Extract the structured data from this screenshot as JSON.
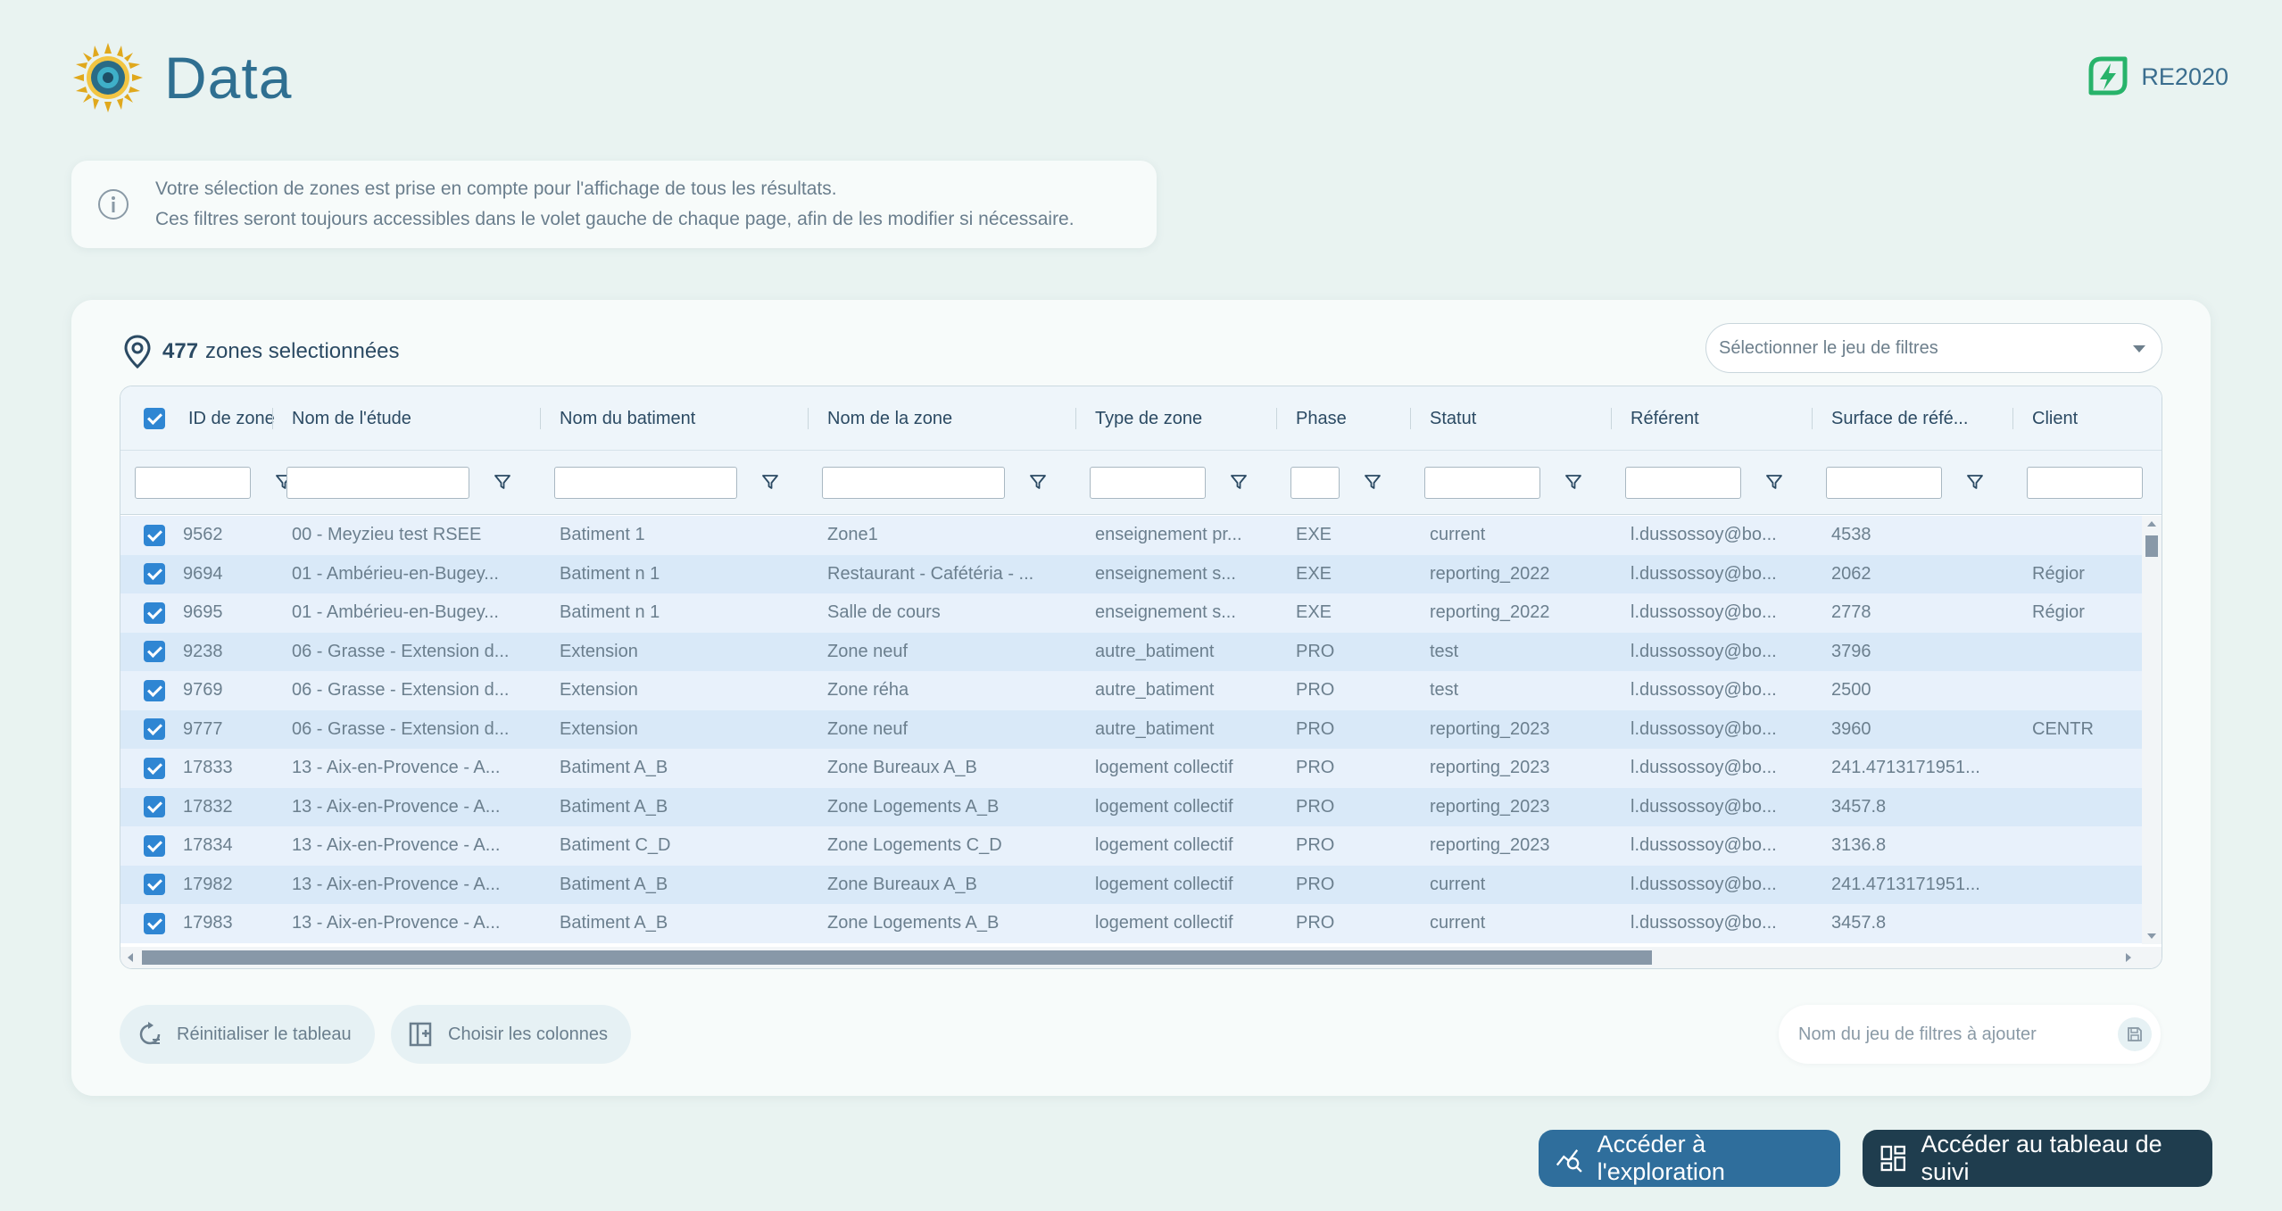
{
  "header": {
    "title": "Data",
    "badge": "RE2020"
  },
  "info": {
    "line1": "Votre sélection de zones est prise en compte pour l'affichage de tous les résultats.",
    "line2": "Ces filtres seront toujours accessibles dans le volet gauche de chaque page, afin de les modifier si nécessaire."
  },
  "card": {
    "count": "477",
    "count_label": "zones selectionnées",
    "filter_select_placeholder": "Sélectionner le jeu de filtres"
  },
  "table": {
    "columns": [
      "ID de zone",
      "Nom de l'étude",
      "Nom du batiment",
      "Nom de la zone",
      "Type de zone",
      "Phase",
      "Statut",
      "Référent",
      "Surface de réfé...",
      "Client"
    ],
    "rows": [
      [
        "9562",
        "00 - Meyzieu test RSEE",
        "Batiment 1",
        "Zone1",
        "enseignement pr...",
        "EXE",
        "current",
        "l.dussossoy@bo...",
        "4538",
        ""
      ],
      [
        "9694",
        "01 - Ambérieu-en-Bugey...",
        "Batiment n 1",
        "Restaurant - Cafétéria - ...",
        "enseignement s...",
        "EXE",
        "reporting_2022",
        "l.dussossoy@bo...",
        "2062",
        "Régior"
      ],
      [
        "9695",
        "01 - Ambérieu-en-Bugey...",
        "Batiment n 1",
        "Salle de cours",
        "enseignement s...",
        "EXE",
        "reporting_2022",
        "l.dussossoy@bo...",
        "2778",
        "Régior"
      ],
      [
        "9238",
        "06 - Grasse - Extension d...",
        "Extension",
        "Zone neuf",
        "autre_batiment",
        "PRO",
        "test",
        "l.dussossoy@bo...",
        "3796",
        ""
      ],
      [
        "9769",
        "06 - Grasse - Extension d...",
        "Extension",
        "Zone réha",
        "autre_batiment",
        "PRO",
        "test",
        "l.dussossoy@bo...",
        "2500",
        ""
      ],
      [
        "9777",
        "06 - Grasse - Extension d...",
        "Extension",
        "Zone neuf",
        "autre_batiment",
        "PRO",
        "reporting_2023",
        "l.dussossoy@bo...",
        "3960",
        "CENTR"
      ],
      [
        "17833",
        "13 - Aix-en-Provence - A...",
        "Batiment A_B",
        "Zone Bureaux A_B",
        "logement collectif",
        "PRO",
        "reporting_2023",
        "l.dussossoy@bo...",
        "241.4713171951...",
        ""
      ],
      [
        "17832",
        "13 - Aix-en-Provence - A...",
        "Batiment A_B",
        "Zone Logements A_B",
        "logement collectif",
        "PRO",
        "reporting_2023",
        "l.dussossoy@bo...",
        "3457.8",
        ""
      ],
      [
        "17834",
        "13 - Aix-en-Provence - A...",
        "Batiment C_D",
        "Zone Logements C_D",
        "logement collectif",
        "PRO",
        "reporting_2023",
        "l.dussossoy@bo...",
        "3136.8",
        ""
      ],
      [
        "17982",
        "13 - Aix-en-Provence - A...",
        "Batiment A_B",
        "Zone Bureaux A_B",
        "logement collectif",
        "PRO",
        "current",
        "l.dussossoy@bo...",
        "241.4713171951...",
        ""
      ],
      [
        "17983",
        "13 - Aix-en-Provence - A...",
        "Batiment A_B",
        "Zone Logements A_B",
        "logement collectif",
        "PRO",
        "current",
        "l.dussossoy@bo...",
        "3457.8",
        ""
      ]
    ]
  },
  "controls": {
    "reset_label": "Réinitialiser le tableau",
    "columns_label": "Choisir les colonnes",
    "filterset_placeholder": "Nom du jeu de filtres à ajouter"
  },
  "actions": {
    "explore_label": "Accéder à l'exploration",
    "track_label": "Accéder au tableau de suivi"
  },
  "colors": {
    "accent": "#2f86d3",
    "explore": "#2f6e9c",
    "track": "#1f3d4e",
    "badge": "#27b36a"
  },
  "icons": [
    "sun-logo-icon",
    "lightning-badge-icon",
    "info-icon",
    "location-pin-icon",
    "filter-icon",
    "reset-icon",
    "columns-icon",
    "save-icon",
    "exploration-icon",
    "dashboard-icon"
  ]
}
